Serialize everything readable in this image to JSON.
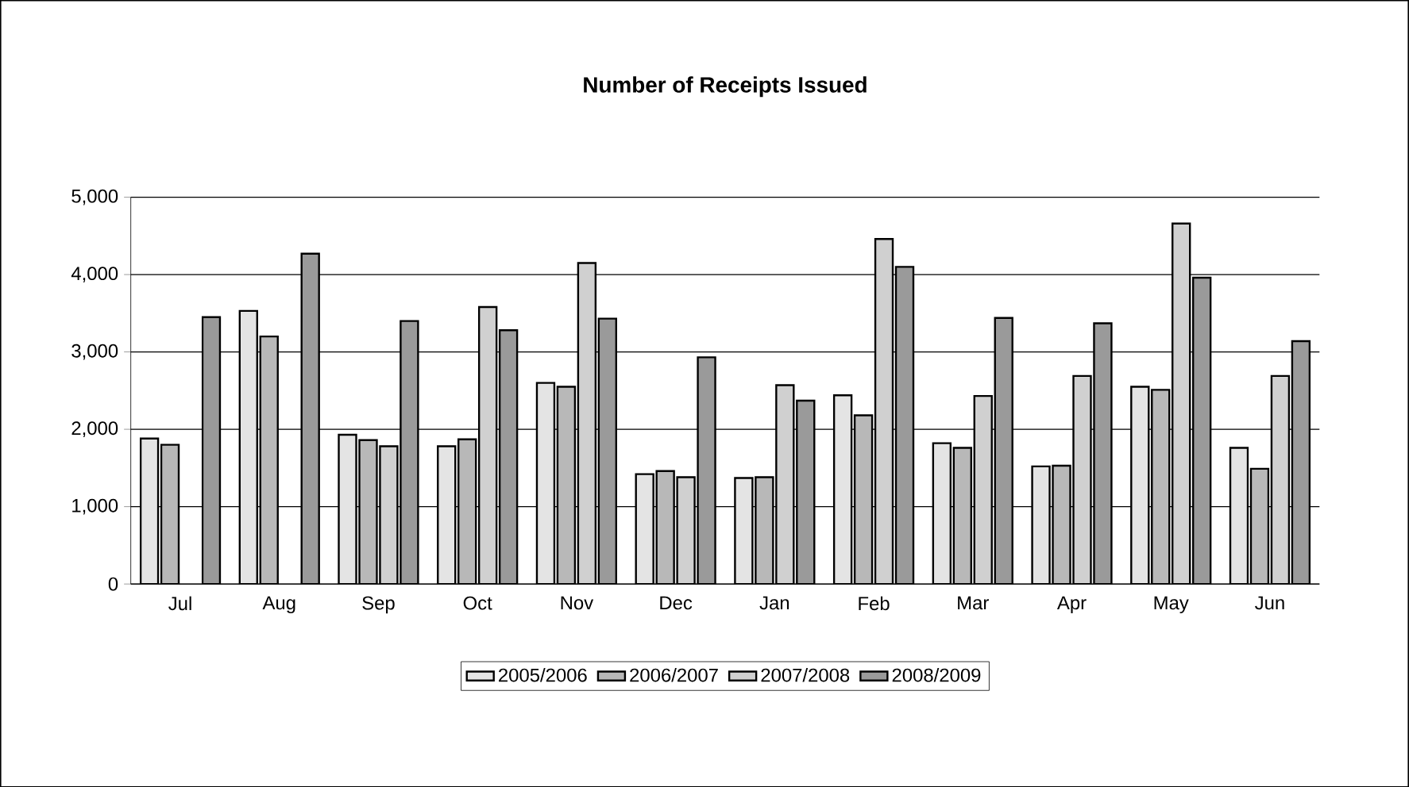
{
  "chart_data": {
    "type": "bar",
    "title": "Number of Receipts Issued",
    "categories": [
      "Jul",
      "Aug",
      "Sep",
      "Oct",
      "Nov",
      "Dec",
      "Jan",
      "Feb",
      "Mar",
      "Apr",
      "May",
      "Jun"
    ],
    "series": [
      {
        "name": "2005/2006",
        "color": "#e4e4e4",
        "values": [
          1880,
          3530,
          1930,
          1780,
          2600,
          1420,
          1370,
          2440,
          1820,
          1520,
          2550,
          1760
        ]
      },
      {
        "name": "2006/2007",
        "color": "#b8b8b8",
        "values": [
          1800,
          3200,
          1860,
          1870,
          2550,
          1460,
          1380,
          2180,
          1760,
          1530,
          2510,
          1490
        ]
      },
      {
        "name": "2007/2008",
        "color": "#d0d0d0",
        "values": [
          null,
          null,
          1780,
          3580,
          4150,
          1380,
          2570,
          4460,
          2430,
          2690,
          4660,
          2690
        ]
      },
      {
        "name": "2008/2009",
        "color": "#9a9a9a",
        "values": [
          3450,
          4270,
          3400,
          3280,
          3430,
          2930,
          2370,
          4100,
          3440,
          3370,
          3960,
          3140
        ]
      }
    ],
    "ylim": [
      0,
      5000
    ],
    "yticks": [
      {
        "value": 0,
        "label": "0"
      },
      {
        "value": 1000,
        "label": "1,000"
      },
      {
        "value": 2000,
        "label": "2,000"
      },
      {
        "value": 3000,
        "label": "3,000"
      },
      {
        "value": 4000,
        "label": "4,000"
      },
      {
        "value": 5000,
        "label": "5,000"
      }
    ],
    "grid": "y",
    "legend": "bottom"
  }
}
